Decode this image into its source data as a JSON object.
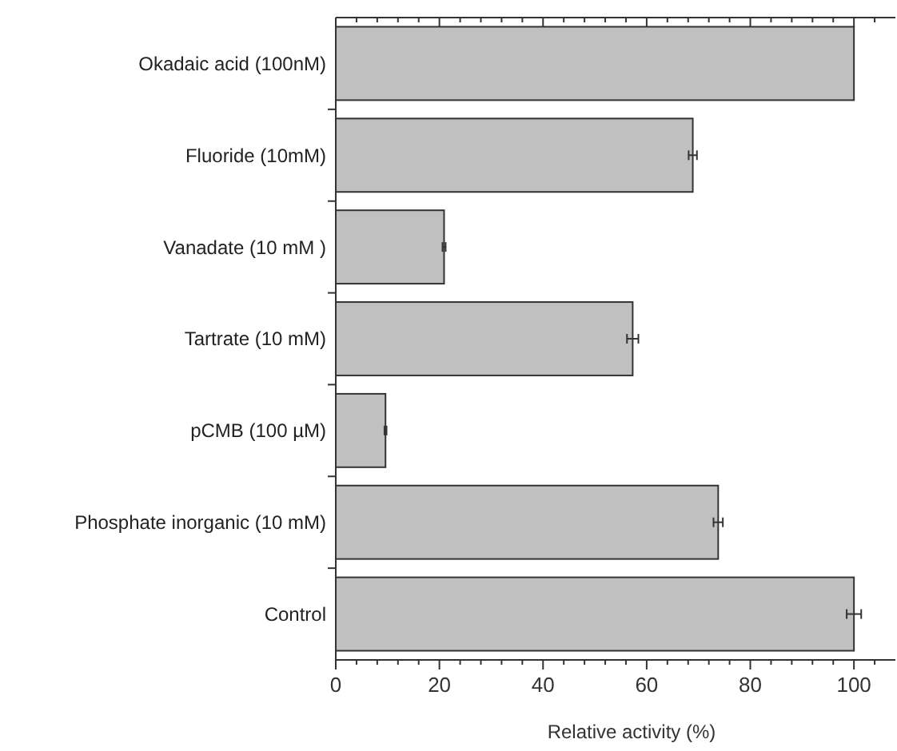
{
  "chart_data": {
    "type": "bar",
    "orientation": "horizontal",
    "xlabel": "Relative activity (%)",
    "categories": [
      "Okadaic acid (100nM)",
      "Fluoride (10mM)",
      "Vanadate (10 mM )",
      "Tartrate (10 mM)",
      "pCMB (100 µM)",
      "Phosphate inorganic (10 mM)",
      "Control"
    ],
    "values": [
      100,
      68.9,
      20.9,
      57.3,
      9.6,
      73.8,
      100
    ],
    "errors": [
      null,
      0.8,
      0.3,
      1.1,
      0.2,
      0.9,
      1.4
    ],
    "color": "#c0c0c0",
    "xlim": [
      0,
      108
    ],
    "xticks": [
      0,
      {
        "value": 4,
        "label": null
      },
      {
        "value": 8,
        "label": null
      },
      {
        "value": 12,
        "label": null
      },
      {
        "value": 16,
        "label": null
      },
      20,
      {
        "value": 24,
        "label": null
      },
      {
        "value": 28,
        "label": null
      },
      {
        "value": 32,
        "label": null
      },
      {
        "value": 36,
        "label": null
      },
      40,
      {
        "value": 44,
        "label": null
      },
      {
        "value": 48,
        "label": null
      },
      {
        "value": 52,
        "label": null
      },
      {
        "value": 56,
        "label": null
      },
      60,
      {
        "value": 64,
        "label": null
      },
      {
        "value": 68,
        "label": null
      },
      {
        "value": 72,
        "label": null
      },
      {
        "value": 76,
        "label": null
      },
      80,
      {
        "value": 84,
        "label": null
      },
      {
        "value": 88,
        "label": null
      },
      {
        "value": 92,
        "label": null
      },
      {
        "value": 96,
        "label": null
      },
      100,
      {
        "value": 104,
        "label": null
      }
    ],
    "grid": false
  }
}
